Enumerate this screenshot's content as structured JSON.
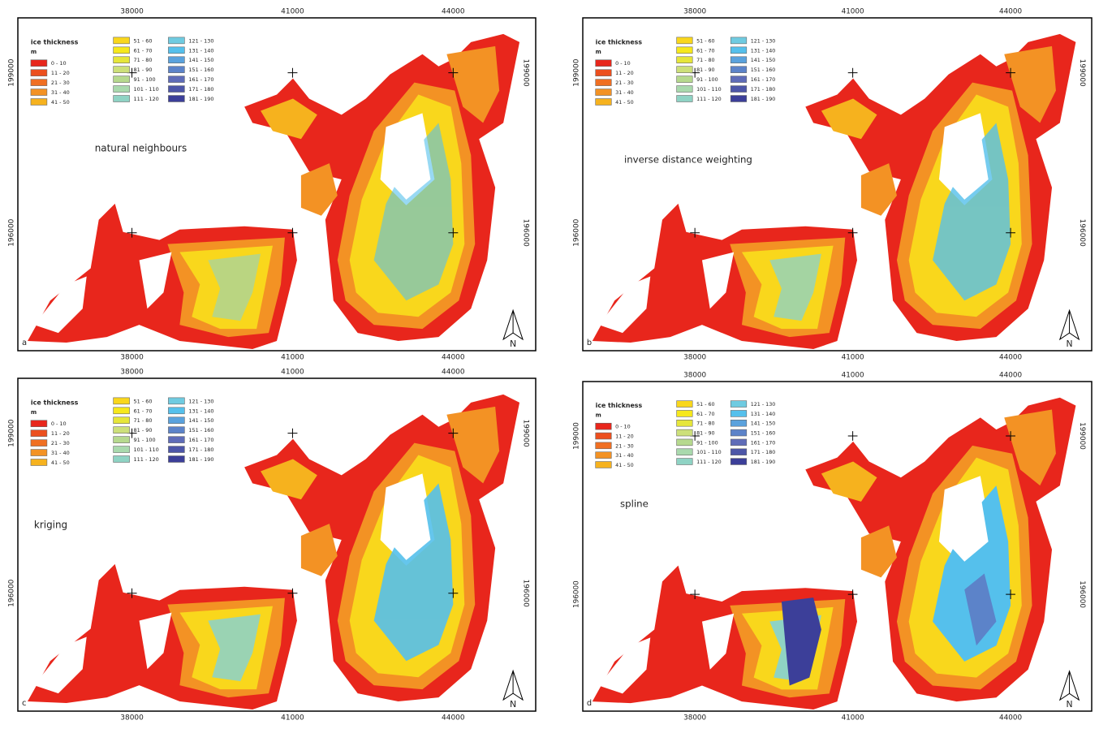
{
  "legend_title": "ice thickness",
  "legend_unit": "m",
  "legend": [
    {
      "label": "0 - 10",
      "color": "#e8261c"
    },
    {
      "label": "11 - 20",
      "color": "#ec4f1e"
    },
    {
      "label": "21 - 30",
      "color": "#f06f22"
    },
    {
      "label": "31 - 40",
      "color": "#f39224"
    },
    {
      "label": "41 - 50",
      "color": "#f6b21e"
    },
    {
      "label": "51 - 60",
      "color": "#f9d71c"
    },
    {
      "label": "61 - 70",
      "color": "#f6e81c"
    },
    {
      "label": "71 - 80",
      "color": "#e6e63a"
    },
    {
      "label": "81 - 90",
      "color": "#cde07a"
    },
    {
      "label": "91 - 100",
      "color": "#b6d98e"
    },
    {
      "label": "101 - 110",
      "color": "#a9d9ad"
    },
    {
      "label": "111 - 120",
      "color": "#8fd3c4"
    },
    {
      "label": "121 - 130",
      "color": "#6fcbe1"
    },
    {
      "label": "131 - 140",
      "color": "#55c0ec"
    },
    {
      "label": "141 - 150",
      "color": "#5aa2dd"
    },
    {
      "label": "151 - 160",
      "color": "#5c83c9"
    },
    {
      "label": "161 - 170",
      "color": "#5f6cb8"
    },
    {
      "label": "171 - 180",
      "color": "#4d56a8"
    },
    {
      "label": "181 - 190",
      "color": "#3c3f99"
    }
  ],
  "x_ticks": [
    38000,
    41000,
    44000
  ],
  "y_ticks": [
    199000,
    196000
  ],
  "north": "N",
  "panels": [
    {
      "letter": "a",
      "method": "natural neighbours"
    },
    {
      "letter": "b",
      "method": "inverse distance weighting"
    },
    {
      "letter": "c",
      "method": "kriging"
    },
    {
      "letter": "d",
      "method": "spline"
    }
  ]
}
